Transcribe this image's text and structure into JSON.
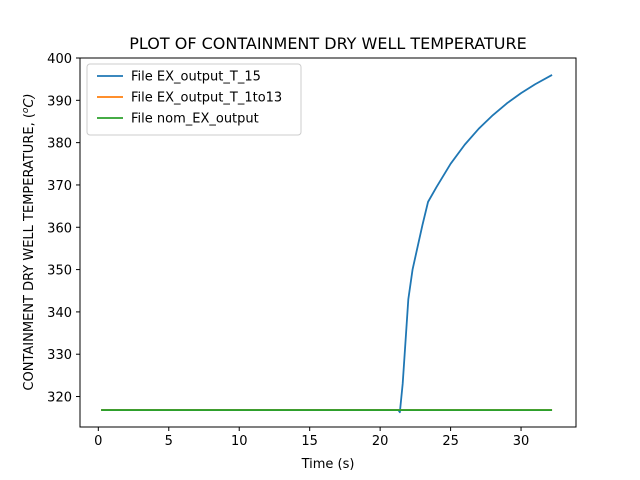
{
  "chart_data": {
    "type": "line",
    "title": "PLOT OF CONTAINMENT DRY WELL TEMPERATURE",
    "xlabel": "Time (s)",
    "ylabel_main": "CONTAINMENT DRY WELL TEMPERATURE, (",
    "ylabel_unit_sup": "o",
    "ylabel_unit_tail": "C)",
    "xlim": [
      -1.3,
      33.9
    ],
    "ylim": [
      312.8,
      400
    ],
    "xticks": [
      0,
      5,
      10,
      15,
      20,
      25,
      30
    ],
    "yticks": [
      320,
      330,
      340,
      350,
      360,
      370,
      380,
      390,
      400
    ],
    "legend_position": "top-left",
    "series": [
      {
        "name": "File EX_output_T_15",
        "color": "#1f77b4",
        "x": [
          0.2,
          5,
          10,
          15,
          20,
          21.3,
          21.4,
          21.6,
          21.8,
          22.0,
          22.3,
          22.7,
          23.0,
          23.4,
          24.0,
          25.0,
          26.0,
          27.0,
          28.0,
          29.0,
          30.0,
          31.0,
          32.2
        ],
        "y": [
          316.8,
          316.8,
          316.8,
          316.8,
          316.8,
          316.8,
          316.3,
          323.0,
          333.0,
          343.0,
          350.0,
          356.0,
          360.5,
          366.0,
          369.5,
          375.0,
          379.5,
          383.3,
          386.5,
          389.3,
          391.7,
          393.8,
          396.0
        ]
      },
      {
        "name": "File EX_output_T_1to13",
        "color": "#ff7f0e",
        "x": [
          0.2,
          32.2
        ],
        "y": [
          316.8,
          316.8
        ]
      },
      {
        "name": "File nom_EX_output",
        "color": "#2ca02c",
        "x": [
          0.2,
          32.2
        ],
        "y": [
          316.8,
          316.8
        ]
      }
    ]
  }
}
